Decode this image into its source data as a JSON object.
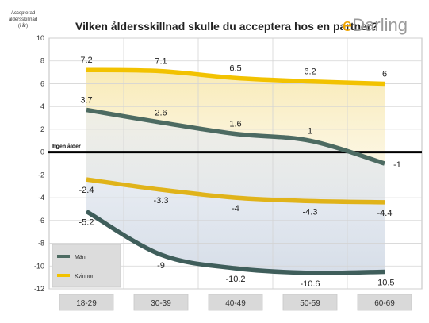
{
  "chart_data": {
    "type": "line",
    "title": "Vilken åldersskillnad skulle du acceptera hos en partner?",
    "ylabel": [
      "Accepterad",
      "åldersskillnad",
      "(i år)"
    ],
    "ylim": [
      -12,
      10
    ],
    "yticks": [
      -12,
      -10,
      -8,
      -6,
      -4,
      -2,
      0,
      2,
      4,
      6,
      8,
      10
    ],
    "categories": [
      "18-29",
      "30-39",
      "40-49",
      "50-59",
      "60-69"
    ],
    "reference_line": {
      "value": 0,
      "label": "Egen ålder"
    },
    "series": [
      {
        "name": "Kvinnor",
        "bound": "upper",
        "color": "#f2c200",
        "values": [
          7.2,
          7.1,
          6.5,
          6.2,
          6
        ]
      },
      {
        "name": "Män",
        "bound": "upper",
        "color": "#4d6b62",
        "values": [
          3.7,
          2.6,
          1.6,
          1,
          -1
        ]
      },
      {
        "name": "Kvinnor",
        "bound": "lower",
        "color": "#e0b31a",
        "values": [
          -2.4,
          -3.3,
          -4,
          -4.3,
          -4.4
        ]
      },
      {
        "name": "Män",
        "bound": "lower",
        "color": "#3f5e5b",
        "values": [
          -5.2,
          -9,
          -10.2,
          -10.6,
          -10.5
        ]
      }
    ],
    "legend": {
      "position": "bottom-left",
      "items": [
        {
          "label": "Män",
          "color": "#4d6b62"
        },
        {
          "label": "Kvinnor",
          "color": "#f2c200"
        }
      ]
    },
    "grid": true
  },
  "logo": {
    "prefix": "e",
    "rest": "Darling",
    "prefix_color": "#f0a500",
    "rest_color": "#9a9a9a"
  }
}
